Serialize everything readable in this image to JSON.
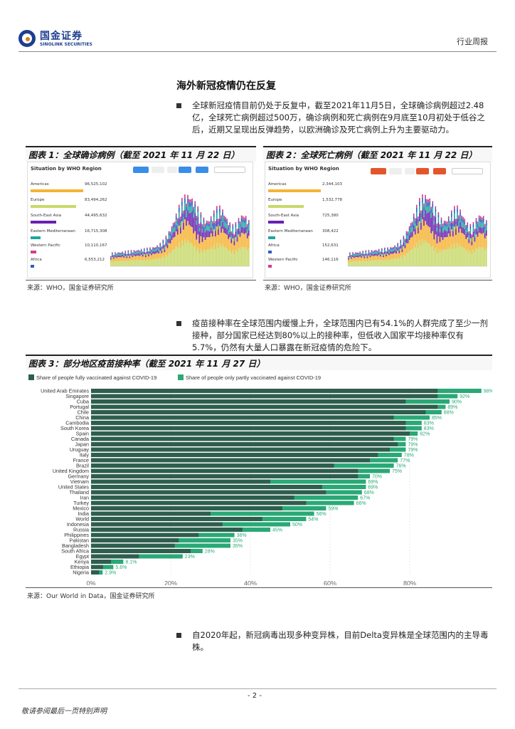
{
  "header": {
    "logo_cn": "国金证券",
    "logo_en": "SINOLINK SECURITIES",
    "report_type": "行业周报"
  },
  "section_title": "海外新冠疫情仍在反复",
  "paragraphs": [
    "全球新冠疫情目前仍处于反复中，截至2021年11月5日，全球确诊病例超过2.48亿，全球死亡病例超过500万，确诊病例和死亡病例在9月底至10月初处于低谷之后，近期又呈现出反弹趋势，以欧洲确诊及死亡病例上升为主要驱动力。",
    "疫苗接种率在全球范围内缓慢上升，全球范围内已有54.1%的人群完成了至少一剂接种，部分国家已经达到80%以上的接种率，但低收入国家平均接种率仅有5.7%，仍然有大量人口暴露在新冠疫情的危险下。",
    "自2020年起，新冠病毒出现多种变异株，目前Delta变异株是全球范围内的主导毒株。"
  ],
  "figures": {
    "fig1": {
      "title": "图表 1：全球确诊病例（截至 2021 年 11 月 22 日）",
      "source": "来源：WHO，国金证券研究所",
      "panel_title": "Situation by WHO Region",
      "regions": [
        {
          "name": "Americas",
          "value": "96,525,102",
          "color": "#f5b335"
        },
        {
          "name": "Europe",
          "value": "83,494,262",
          "color": "#c8d96a"
        },
        {
          "name": "South-East Asia",
          "value": "44,495,632",
          "color": "#6a1fb0"
        },
        {
          "name": "Eastern Mediterranean",
          "value": "16,715,308",
          "color": "#1fa5a0"
        },
        {
          "name": "Western Pacific",
          "value": "10,110,167",
          "color": "#d33c8e"
        },
        {
          "name": "Africa",
          "value": "6,553,212",
          "color": "#2a5fbf"
        }
      ]
    },
    "fig2": {
      "title": "图表 2：全球死亡病例（截至 2021 年 11 月 22 日）",
      "source": "来源：WHO，国金证券研究所",
      "panel_title": "Situation by WHO Region",
      "regions": [
        {
          "name": "Americas",
          "value": "2,344,103",
          "color": "#f5b335"
        },
        {
          "name": "Europe",
          "value": "1,532,778",
          "color": "#c8d96a"
        },
        {
          "name": "South-East Asia",
          "value": "725,380",
          "color": "#6a1fb0"
        },
        {
          "name": "Eastern Mediterranean",
          "value": "308,422",
          "color": "#1fa5a0"
        },
        {
          "name": "Africa",
          "value": "152,631",
          "color": "#2a5fbf"
        },
        {
          "name": "Western Pacific",
          "value": "146,116",
          "color": "#d33c8e"
        }
      ]
    },
    "fig3": {
      "title": "图表 3：部分地区疫苗接种率（截至 2021 年 11 月 27 日）",
      "source": "来源：Our World in Data，国金证券研究所"
    }
  },
  "chart_data": {
    "type": "bar",
    "orientation": "horizontal",
    "stacked": true,
    "legend": [
      "Share of people fully vaccinated against COVID-19",
      "Share of people only partly vaccinated against COVID-19"
    ],
    "colors": {
      "full": "#2e5e4e",
      "partial": "#2aa876"
    },
    "xlim": [
      0,
      100
    ],
    "xticks": [
      "0%",
      "20%",
      "40%",
      "60%",
      "80%"
    ],
    "categories": [
      "United Arab Emirates",
      "Singapore",
      "Cuba",
      "Portugal",
      "Chile",
      "China",
      "Cambodia",
      "South Korea",
      "Spain",
      "Canada",
      "Japan",
      "Uruguay",
      "Italy",
      "France",
      "Brazil",
      "United Kingdom",
      "Germany",
      "Vietnam",
      "United States",
      "Thailand",
      "Iran",
      "Turkey",
      "Mexico",
      "India",
      "World",
      "Indonesia",
      "Russia",
      "Philippines",
      "Pakistan",
      "Bangladesh",
      "South Africa",
      "Egypt",
      "Kenya",
      "Ethiopia",
      "Nigeria"
    ],
    "full": [
      87,
      87,
      79,
      87,
      84,
      76,
      79,
      79,
      80,
      76,
      77,
      75,
      72,
      70,
      61,
      67,
      67,
      45,
      58,
      59,
      51,
      54,
      48,
      30,
      43,
      33,
      38,
      27,
      22,
      21,
      25,
      12,
      5,
      3,
      2
    ],
    "totals": [
      98,
      92,
      90,
      89,
      88,
      85,
      83,
      83,
      82,
      79,
      79,
      79,
      78,
      77,
      76,
      75,
      70,
      69,
      69,
      68,
      67,
      66,
      59,
      56,
      54,
      50,
      45,
      36,
      35,
      35,
      28,
      23,
      8.1,
      5.6,
      2.9
    ],
    "total_labels": [
      "98%",
      "92%",
      "90%",
      "89%",
      "88%",
      "85%",
      "83%",
      "83%",
      "82%",
      "79%",
      "79%",
      "79%",
      "78%",
      "77%",
      "76%",
      "75%",
      "70%",
      "69%",
      "69%",
      "68%",
      "67%",
      "66%",
      "59%",
      "56%",
      "54%",
      "50%",
      "45%",
      "36%",
      "35%",
      "35%",
      "28%",
      "23%",
      "8.1%",
      "5.6%",
      "2.9%"
    ]
  },
  "footer": {
    "page_number": "- 2 -",
    "disclaimer": "敬请参阅最后一页特别声明"
  }
}
